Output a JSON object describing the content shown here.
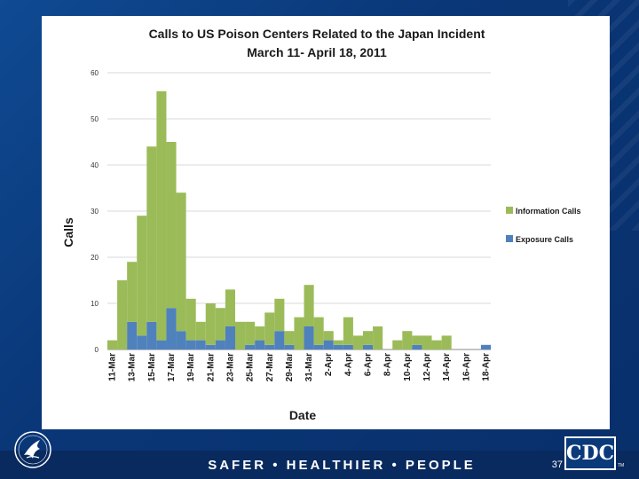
{
  "slide": {
    "tagline": "SAFER • HEALTHIER • PEOPLE",
    "page_number": "37",
    "cdc_logo_text": "CDC",
    "cdc_trademark": "TM"
  },
  "colors": {
    "information": "#9bbb59",
    "exposure": "#4f81bd",
    "background": "#0b3a7a"
  },
  "chart_data": {
    "type": "bar",
    "stacked": true,
    "title": "Calls to US Poison Centers Related to the Japan Incident",
    "subtitle": "March 11- April 18, 2011",
    "xlabel": "Date",
    "ylabel": "Calls",
    "ylim": [
      0,
      60
    ],
    "yticks": [
      0,
      10,
      20,
      30,
      40,
      50,
      60
    ],
    "grid": true,
    "legend_position": "right",
    "categories": [
      "11-Mar",
      "12-Mar",
      "13-Mar",
      "14-Mar",
      "15-Mar",
      "16-Mar",
      "17-Mar",
      "18-Mar",
      "19-Mar",
      "20-Mar",
      "21-Mar",
      "22-Mar",
      "23-Mar",
      "24-Mar",
      "25-Mar",
      "26-Mar",
      "27-Mar",
      "28-Mar",
      "29-Mar",
      "30-Mar",
      "31-Mar",
      "1-Apr",
      "2-Apr",
      "3-Apr",
      "4-Apr",
      "5-Apr",
      "6-Apr",
      "7-Apr",
      "8-Apr",
      "9-Apr",
      "10-Apr",
      "11-Apr",
      "12-Apr",
      "13-Apr",
      "14-Apr",
      "15-Apr",
      "16-Apr",
      "17-Apr",
      "18-Apr"
    ],
    "tick_labels": [
      "11-Mar",
      "13-Mar",
      "15-Mar",
      "17-Mar",
      "19-Mar",
      "21-Mar",
      "23-Mar",
      "25-Mar",
      "27-Mar",
      "29-Mar",
      "31-Mar",
      "2-Apr",
      "4-Apr",
      "6-Apr",
      "8-Apr",
      "10-Apr",
      "12-Apr",
      "14-Apr",
      "16-Apr",
      "18-Apr"
    ],
    "series": [
      {
        "name": "Exposure Calls",
        "values": [
          0,
          0,
          6,
          3,
          6,
          2,
          9,
          4,
          2,
          2,
          1,
          2,
          5,
          0,
          1,
          2,
          1,
          4,
          1,
          0,
          5,
          1,
          2,
          1,
          1,
          0,
          1,
          0,
          0,
          0,
          0,
          1,
          0,
          0,
          0,
          0,
          0,
          0,
          1
        ]
      },
      {
        "name": "Information Calls",
        "values": [
          2,
          15,
          13,
          26,
          38,
          54,
          36,
          30,
          9,
          4,
          9,
          7,
          8,
          6,
          5,
          3,
          7,
          7,
          3,
          7,
          9,
          6,
          2,
          1,
          6,
          3,
          3,
          5,
          0,
          2,
          4,
          2,
          3,
          2,
          3,
          0,
          0,
          0,
          0
        ]
      }
    ]
  }
}
